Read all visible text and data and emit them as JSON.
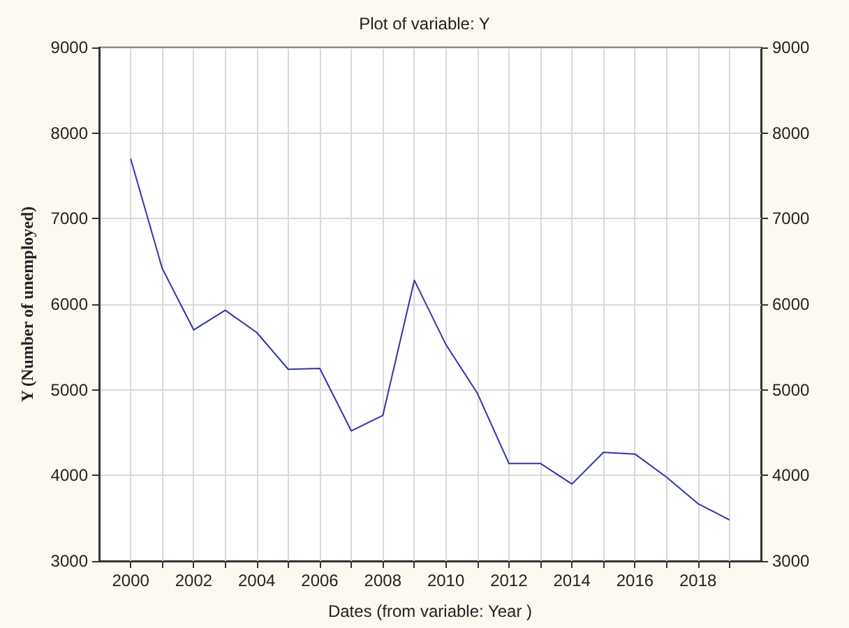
{
  "chart_data": {
    "type": "line",
    "title": "Plot of variable: Y",
    "xlabel": "Dates (from variable: Year )",
    "ylabel": "Y (Number of unemployed)",
    "x": [
      2000,
      2001,
      2002,
      2003,
      2004,
      2005,
      2006,
      2007,
      2008,
      2009,
      2010,
      2011,
      2012,
      2013,
      2014,
      2015,
      2016,
      2017,
      2018,
      2019
    ],
    "series": [
      {
        "color": "#3333aa",
        "values": [
          7700,
          6420,
          5700,
          5930,
          5670,
          5240,
          5250,
          4520,
          4700,
          6280,
          5530,
          4960,
          4140,
          4140,
          3900,
          4270,
          4250,
          3980,
          3670,
          3480
        ]
      }
    ],
    "xlim": [
      1999,
      2020
    ],
    "xticks": [
      2000,
      {
        "value": 2001,
        "label": null
      },
      2002,
      {
        "value": 2003,
        "label": null
      },
      2004,
      {
        "value": 2005,
        "label": null
      },
      2006,
      {
        "value": 2007,
        "label": null
      },
      2008,
      {
        "value": 2009,
        "label": null
      },
      2010,
      {
        "value": 2011,
        "label": null
      },
      2012,
      {
        "value": 2013,
        "label": null
      },
      2014,
      {
        "value": 2015,
        "label": null
      },
      2016,
      {
        "value": 2017,
        "label": null
      },
      2018,
      {
        "value": 2019,
        "label": null
      }
    ],
    "ylim": [
      3000,
      9000
    ],
    "yticks": [
      3000,
      4000,
      5000,
      6000,
      7000,
      8000,
      9000
    ],
    "y2lim": [
      3000,
      9000
    ],
    "y2ticks": [
      3000,
      4000,
      5000,
      6000,
      7000,
      8000,
      9000
    ],
    "grid": true,
    "marker": "none",
    "line_style": "solid"
  }
}
